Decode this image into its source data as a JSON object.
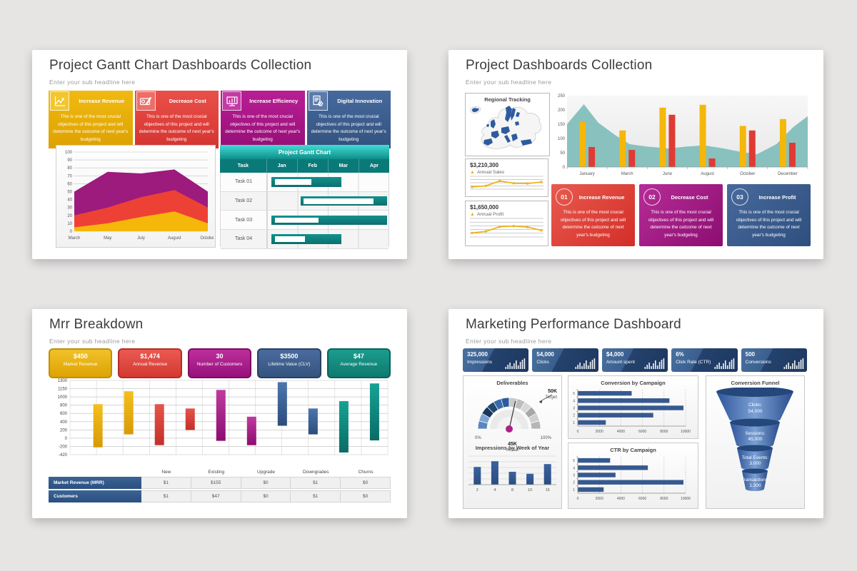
{
  "page": {
    "background": "#e6e5e4"
  },
  "shared": {
    "body_text": "This is one of the most crucial objectives of this project and will determine the outcome of next year's budgeting"
  },
  "slide1": {
    "title": "Project Gantt Chart Dashboards Collection",
    "subtitle": "Enter your sub headline here",
    "cards": [
      {
        "label": "Increase Revenue",
        "icon": "line-chart-icon",
        "top": "#f0ba12",
        "bottom": "#dda101",
        "icon_bg": "#f3c62e"
      },
      {
        "label": "Decrease Cost",
        "icon": "expense-check-icon",
        "top": "#e9504a",
        "bottom": "#d53430",
        "icon_bg": "#ed6d67"
      },
      {
        "label": "Increase Efficiency",
        "icon": "monitor-chart-icon",
        "top": "#b81f95",
        "bottom": "#970e77",
        "icon_bg": "#c43ba4"
      },
      {
        "label": "Digital Innovation",
        "icon": "gear-document-icon",
        "top": "#46699e",
        "bottom": "#33527f",
        "icon_bg": "#5a7aab"
      }
    ],
    "area_chart": {
      "type": "area",
      "x": [
        "March",
        "May",
        "July",
        "August",
        "October"
      ],
      "ylim": [
        0,
        100
      ],
      "ystep": 10,
      "series": [
        {
          "name": "purple",
          "color": "#9c1b7d",
          "cum": [
            50,
            75,
            73,
            78,
            50
          ]
        },
        {
          "name": "red",
          "color": "#ee4136",
          "cum": [
            20,
            30,
            43,
            52,
            30
          ]
        },
        {
          "name": "yellow",
          "color": "#f5b70a",
          "cum": [
            5,
            10,
            18,
            25,
            10
          ]
        }
      ]
    },
    "gantt": {
      "title": "Project Gantt Chart",
      "columns": [
        "Task",
        "Jan",
        "Feb",
        "Mar",
        "Apr"
      ],
      "rows": [
        {
          "label": "Task 01",
          "bar": [
            0.15,
            2.45
          ],
          "inner": [
            0.25,
            1.45
          ]
        },
        {
          "label": "Task 02",
          "bar": [
            1.1,
            3.95
          ],
          "inner": [
            1.2,
            3.5
          ]
        },
        {
          "label": "Task 03",
          "bar": [
            0.15,
            3.95
          ],
          "inner": [
            0.25,
            1.7
          ]
        },
        {
          "label": "Task 04",
          "bar": [
            0.15,
            2.45
          ],
          "inner": [
            0.25,
            1.25
          ]
        }
      ]
    }
  },
  "slide2": {
    "title": "Project Dashboards Collection",
    "subtitle": "Enter your sub headline here",
    "map": {
      "title": "Regional Tracking",
      "fill_color": "#2e5b9f"
    },
    "kpis": [
      {
        "value": "$3,210,300",
        "label": "Annual Sales",
        "spark": [
          14,
          24,
          70,
          48,
          46,
          60
        ]
      },
      {
        "value": "$1,650,000",
        "label": "Annual Profit",
        "spark": [
          20,
          30,
          58,
          62,
          56,
          36
        ]
      }
    ],
    "combo_chart": {
      "type": "bar+area",
      "categories": [
        "January",
        "March",
        "June",
        "August",
        "October",
        "December"
      ],
      "ylim": [
        0,
        250
      ],
      "ystep": 50,
      "series": [
        {
          "name": "yellow",
          "color": "#f5b70a",
          "values": [
            158,
            128,
            208,
            218,
            144,
            168
          ]
        },
        {
          "name": "red",
          "color": "#e03a34",
          "values": [
            70,
            60,
            183,
            30,
            128,
            85
          ]
        }
      ],
      "area_color": "#7fbdba",
      "area_points": [
        [
          0,
          150
        ],
        [
          0.07,
          220
        ],
        [
          0.13,
          155
        ],
        [
          0.2,
          112
        ],
        [
          0.26,
          80
        ],
        [
          0.33,
          72
        ],
        [
          0.42,
          65
        ],
        [
          0.5,
          72
        ],
        [
          0.57,
          76
        ],
        [
          0.65,
          65
        ],
        [
          0.73,
          52
        ],
        [
          0.79,
          45
        ],
        [
          0.87,
          80
        ],
        [
          0.94,
          140
        ],
        [
          1,
          178
        ]
      ]
    },
    "cards": [
      {
        "number": "01",
        "label": "Increase Revenue",
        "top": "#e85a4f",
        "bottom": "#d32e27"
      },
      {
        "number": "02",
        "label": "Decrease Cost",
        "top": "#b62d97",
        "bottom": "#8c0d71"
      },
      {
        "number": "03",
        "label": "Increase Profit",
        "top": "#47699c",
        "bottom": "#2e4f7e"
      }
    ]
  },
  "slide3": {
    "title": "Mrr Breakdown",
    "subtitle": "Enter your sub headline here",
    "pills": [
      {
        "value": "$450",
        "label": "Market Revenue",
        "top": "#f1c12a",
        "bottom": "#dda302",
        "border": "#c08f06"
      },
      {
        "value": "$1,474",
        "label": "Annual Revenue",
        "top": "#ea5a52",
        "bottom": "#d33931",
        "border": "#b52c25"
      },
      {
        "value": "30",
        "label": "Number of Customers",
        "top": "#bc2f9c",
        "bottom": "#97117b",
        "border": "#7d0c64"
      },
      {
        "value": "$3500",
        "label": "Lifetime Value (CLV)",
        "top": "#4a6b9e",
        "bottom": "#35547f",
        "border": "#294264"
      },
      {
        "value": "$47",
        "label": "Average Revenue",
        "top": "#1b9d8f",
        "bottom": "#0e7a6f",
        "border": "#0a635a"
      }
    ],
    "range_chart": {
      "type": "bar",
      "subtype": "floating-range-bars",
      "y_labels": [
        "1300",
        "1150",
        "1000",
        "800",
        "600",
        "400",
        "200",
        "0",
        "-200",
        "-420"
      ],
      "ylim": [
        -420,
        1300
      ],
      "bars": [
        {
          "color": "gold",
          "range": [
            -250,
            750
          ]
        },
        {
          "color": "gold",
          "range": [
            50,
            1050
          ]
        },
        {
          "color": "red",
          "range": [
            -200,
            750
          ]
        },
        {
          "color": "red",
          "range": [
            150,
            650
          ]
        },
        {
          "color": "magenta",
          "range": [
            -100,
            1080
          ]
        },
        {
          "color": "magenta",
          "range": [
            -200,
            460
          ]
        },
        {
          "color": "blue",
          "range": [
            250,
            1260
          ]
        },
        {
          "color": "blue",
          "range": [
            50,
            650
          ]
        },
        {
          "color": "teal",
          "range": [
            -370,
            820
          ]
        },
        {
          "color": "teal",
          "range": [
            -90,
            1230
          ]
        }
      ],
      "palette": {
        "gold": [
          "#f3c01d",
          "#d89a06"
        ],
        "red": [
          "#e5544c",
          "#c52f28"
        ],
        "magenta": [
          "#bf3a9f",
          "#8c0d71"
        ],
        "blue": [
          "#4b76ae",
          "#2c4d7c"
        ],
        "teal": [
          "#16a295",
          "#0a6c66"
        ]
      }
    },
    "table": {
      "headers": [
        "New",
        "Existing",
        "Upgrade",
        "Downgrades",
        "Churns"
      ],
      "rows": [
        {
          "label": "Market Revenue (MRR)",
          "values": [
            "$1",
            "$155",
            "$0",
            "$1",
            "$0"
          ]
        },
        {
          "label": "Customers",
          "values": [
            "$1",
            "$47",
            "$0",
            "$1",
            "$0"
          ]
        }
      ]
    }
  },
  "slide4": {
    "title": "Marketing Performance Dashboard",
    "subtitle": "Enter your sub headline here",
    "chips": [
      {
        "value": "325,000",
        "label": "Impressions"
      },
      {
        "value": "54,000",
        "label": "Clicks"
      },
      {
        "value": "$4,000",
        "label": "Amount spent"
      },
      {
        "value": "6%",
        "label": "Click Rate (CTR)"
      },
      {
        "value": "500",
        "label": "Conversions"
      }
    ],
    "gauge": {
      "title": "Deliverables",
      "min_label": "0%",
      "max_label": "100%",
      "actual_value": "45K",
      "actual_label": "Actual",
      "target_value": "50K",
      "target_label": "Target",
      "needle_pct": 57,
      "blue_segments": [
        "#5b87bb",
        "#7fa3d1",
        "#17375e",
        "#24476e",
        "#3a6aa6",
        "#2e5b9f"
      ],
      "gray_segments": [
        "#c9c9c9",
        "#bdbdbd",
        "#d8d8d8",
        "#a8a8a8",
        "#cfcfcf",
        "#b5b5b5"
      ],
      "pivot_color": "#b01e8c"
    },
    "week_chart": {
      "type": "bar",
      "title": "Impressions by Week of Year",
      "categories": [
        "2",
        "4",
        "8",
        "10",
        "15"
      ],
      "values": [
        62,
        82,
        45,
        38,
        72
      ],
      "ymax": 100,
      "bar_color": "#3a62a0"
    },
    "conversion_chart": {
      "type": "bar",
      "orientation": "horizontal",
      "title": "Conversion by Campaign",
      "categories": [
        "1",
        "2",
        "3",
        "4",
        "5"
      ],
      "values": [
        2600,
        7000,
        9800,
        8500,
        5000
      ],
      "x_ticks": [
        "0",
        "2000",
        "4000",
        "6000",
        "8000",
        "10000"
      ],
      "xlim": [
        0,
        10000
      ],
      "bar_color": "#36598f"
    },
    "ctr_chart": {
      "type": "bar",
      "orientation": "horizontal",
      "title": "CTR by Campaign",
      "categories": [
        "1",
        "2",
        "3",
        "4",
        "5"
      ],
      "values": [
        2400,
        9800,
        3500,
        6500,
        3000
      ],
      "x_ticks": [
        "0",
        "2000",
        "4000",
        "6000",
        "8000",
        "10000"
      ],
      "xlim": [
        0,
        10000
      ],
      "bar_color": "#36598f"
    },
    "funnel": {
      "title": "Conversion Funnel",
      "stages": [
        {
          "label": "Clicks:",
          "value": "54,000"
        },
        {
          "label": "Sessions:",
          "value": "45,000"
        },
        {
          "label": "Total Events:",
          "value": "3.000"
        },
        {
          "label": "Transactions:",
          "value": "1.300"
        }
      ]
    }
  }
}
